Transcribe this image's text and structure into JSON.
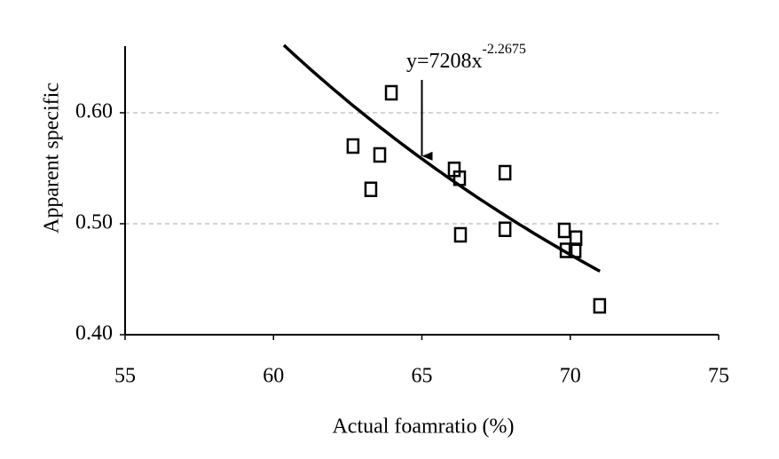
{
  "chart_data": {
    "type": "scatter",
    "x_label": "Actual foamratio (%)",
    "y_label": "Apparent specific",
    "xlim": [
      55,
      75
    ],
    "xticks": [
      55,
      60,
      65,
      70,
      75
    ],
    "ylim": [
      0.4,
      0.66
    ],
    "yticks": [
      {
        "value": 0.4,
        "label": "0.40"
      },
      {
        "value": 0.5,
        "label": "0.50"
      },
      {
        "value": 0.6,
        "label": "0.60"
      }
    ],
    "grid": true,
    "color": "#000000",
    "x": [
      62.68,
      63.97,
      63.58,
      63.28,
      66.09,
      66.27,
      66.3,
      67.8,
      67.8,
      69.8,
      70.19,
      69.86,
      70.16,
      70.99
    ],
    "values": [
      0.57,
      0.618,
      0.562,
      0.531,
      0.549,
      0.541,
      0.49,
      0.546,
      0.495,
      0.494,
      0.487,
      0.476,
      0.476,
      0.426
    ],
    "fit": {
      "label": "y=7208x",
      "exponent_label": "-2.2675",
      "coefficient": 7208,
      "exponent": -2.2675,
      "xlim": [
        60.35,
        71.0
      ],
      "arrow_x": 65
    }
  }
}
